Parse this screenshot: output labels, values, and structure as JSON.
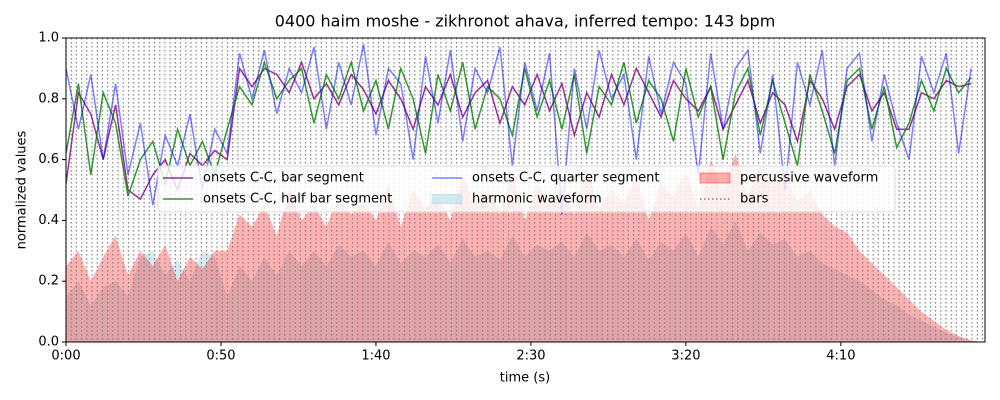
{
  "chart_data": {
    "type": "line",
    "title": "0400 haim moshe - zikhronot ahava, inferred tempo: 143 bpm",
    "xlabel": "time (s)",
    "ylabel": "normalized values",
    "xlim": [
      0,
      296.5
    ],
    "ylim": [
      0,
      1
    ],
    "xticks": [
      {
        "value": 0,
        "label": "0:00"
      },
      {
        "value": 50,
        "label": "0:50"
      },
      {
        "value": 100,
        "label": "1:40"
      },
      {
        "value": 150,
        "label": "2:30"
      },
      {
        "value": 200,
        "label": "3:20"
      },
      {
        "value": 250,
        "label": "4:10"
      }
    ],
    "yticks": [
      {
        "value": 0,
        "label": "0.0"
      },
      {
        "value": 0.2,
        "label": "0.2"
      },
      {
        "value": 0.4,
        "label": "0.4"
      },
      {
        "value": 0.6,
        "label": "0.6"
      },
      {
        "value": 0.8,
        "label": "0.8"
      },
      {
        "value": 1,
        "label": "1.0"
      }
    ],
    "x": [
      0,
      4,
      8,
      12,
      16,
      20,
      24,
      28,
      32,
      36,
      40,
      44,
      48,
      52,
      56,
      60,
      64,
      68,
      72,
      76,
      80,
      84,
      88,
      92,
      96,
      100,
      104,
      108,
      112,
      116,
      120,
      124,
      128,
      132,
      136,
      140,
      144,
      148,
      152,
      156,
      160,
      164,
      168,
      172,
      176,
      180,
      184,
      188,
      192,
      196,
      200,
      204,
      208,
      212,
      216,
      220,
      224,
      228,
      232,
      236,
      240,
      244,
      248,
      252,
      256,
      260,
      264,
      268,
      272,
      276,
      280,
      284,
      288,
      292,
      296
    ],
    "series": [
      {
        "name": "onsets C-C, bar segment",
        "kind": "line",
        "color": "#800080",
        "values": [
          0.52,
          0.82,
          0.75,
          0.6,
          0.78,
          0.5,
          0.47,
          0.55,
          0.6,
          0.5,
          0.62,
          0.58,
          0.63,
          0.6,
          0.9,
          0.84,
          0.9,
          0.88,
          0.82,
          0.92,
          0.8,
          0.85,
          0.78,
          0.88,
          0.83,
          0.75,
          0.86,
          0.8,
          0.7,
          0.84,
          0.78,
          0.88,
          0.74,
          0.82,
          0.86,
          0.72,
          0.84,
          0.78,
          0.88,
          0.76,
          0.85,
          0.68,
          0.82,
          0.74,
          0.88,
          0.78,
          0.9,
          0.82,
          0.74,
          0.86,
          0.8,
          0.76,
          0.84,
          0.7,
          0.78,
          0.86,
          0.72,
          0.82,
          0.78,
          0.66,
          0.86,
          0.8,
          0.7,
          0.84,
          0.88,
          0.76,
          0.82,
          0.7,
          0.7,
          0.82,
          0.8,
          0.86,
          0.84,
          0.85,
          null
        ]
      },
      {
        "name": "onsets C-C, half bar segment",
        "kind": "line",
        "color": "#008000",
        "values": [
          0.62,
          0.85,
          0.55,
          0.82,
          0.72,
          0.48,
          0.6,
          0.66,
          0.52,
          0.7,
          0.58,
          0.66,
          0.55,
          0.7,
          0.84,
          0.78,
          0.92,
          0.8,
          0.86,
          0.9,
          0.72,
          0.88,
          0.8,
          0.92,
          0.76,
          0.86,
          0.7,
          0.9,
          0.8,
          0.62,
          0.88,
          0.76,
          0.92,
          0.7,
          0.84,
          0.8,
          0.68,
          0.9,
          0.74,
          0.86,
          0.7,
          0.88,
          0.62,
          0.84,
          0.78,
          0.92,
          0.72,
          0.86,
          0.8,
          0.66,
          0.9,
          0.74,
          0.84,
          0.6,
          0.82,
          0.9,
          0.68,
          0.86,
          0.72,
          0.58,
          0.88,
          0.76,
          0.62,
          0.86,
          0.9,
          0.7,
          0.84,
          0.64,
          0.72,
          0.86,
          0.76,
          0.9,
          0.82,
          0.87,
          null
        ]
      },
      {
        "name": "onsets C-C, quarter segment",
        "kind": "line",
        "color": "#0000ff",
        "values": [
          0.9,
          0.7,
          0.88,
          0.6,
          0.85,
          0.55,
          0.72,
          0.45,
          0.68,
          0.58,
          0.75,
          0.5,
          0.7,
          0.62,
          0.95,
          0.8,
          0.96,
          0.75,
          0.9,
          0.82,
          0.97,
          0.7,
          0.92,
          0.78,
          0.98,
          0.68,
          0.9,
          0.85,
          0.6,
          0.94,
          0.72,
          0.96,
          0.66,
          0.9,
          0.82,
          0.97,
          0.58,
          0.92,
          0.76,
          0.95,
          0.42,
          0.9,
          0.7,
          0.96,
          0.8,
          0.88,
          0.6,
          0.94,
          0.75,
          0.92,
          0.85,
          0.55,
          0.95,
          0.7,
          0.9,
          0.96,
          0.62,
          0.88,
          0.5,
          0.92,
          0.78,
          0.96,
          0.58,
          0.9,
          0.95,
          0.66,
          0.88,
          0.72,
          0.6,
          0.94,
          0.82,
          0.95,
          0.62,
          0.9,
          null
        ]
      },
      {
        "name": "harmonic waveform",
        "kind": "area",
        "color": "#add8e6",
        "values": [
          0.15,
          0.2,
          0.12,
          0.18,
          0.2,
          0.15,
          0.28,
          0.3,
          0.22,
          0.27,
          0.2,
          0.3,
          0.28,
          0.15,
          0.25,
          0.2,
          0.28,
          0.22,
          0.3,
          0.25,
          0.3,
          0.25,
          0.32,
          0.28,
          0.3,
          0.25,
          0.33,
          0.26,
          0.3,
          0.28,
          0.32,
          0.26,
          0.34,
          0.28,
          0.3,
          0.27,
          0.35,
          0.28,
          0.32,
          0.3,
          0.33,
          0.28,
          0.36,
          0.3,
          0.32,
          0.28,
          0.34,
          0.27,
          0.33,
          0.3,
          0.36,
          0.28,
          0.38,
          0.32,
          0.4,
          0.3,
          0.36,
          0.32,
          0.34,
          0.28,
          0.3,
          0.26,
          0.24,
          0.22,
          0.2,
          0.17,
          0.14,
          0.12,
          0.09,
          0.07,
          0.05,
          0.03,
          0.015,
          0.005,
          0
        ]
      },
      {
        "name": "percussive waveform",
        "kind": "area",
        "color": "#ff0000",
        "values": [
          0.25,
          0.3,
          0.2,
          0.28,
          0.35,
          0.22,
          0.3,
          0.25,
          0.32,
          0.2,
          0.28,
          0.24,
          0.3,
          0.3,
          0.42,
          0.38,
          0.45,
          0.35,
          0.5,
          0.4,
          0.45,
          0.38,
          0.48,
          0.42,
          0.46,
          0.4,
          0.52,
          0.38,
          0.5,
          0.44,
          0.48,
          0.4,
          0.55,
          0.45,
          0.5,
          0.42,
          0.56,
          0.4,
          0.52,
          0.46,
          0.5,
          0.42,
          0.58,
          0.44,
          0.5,
          0.46,
          0.54,
          0.4,
          0.52,
          0.48,
          0.56,
          0.44,
          0.6,
          0.5,
          0.62,
          0.48,
          0.58,
          0.52,
          0.55,
          0.46,
          0.5,
          0.42,
          0.38,
          0.36,
          0.3,
          0.26,
          0.22,
          0.18,
          0.14,
          0.1,
          0.07,
          0.04,
          0.02,
          0.005,
          0
        ]
      },
      {
        "name": "bars",
        "kind": "vlines",
        "color": "#808080",
        "x": [
          0,
          1.68,
          3.36,
          5.04,
          6.72,
          8.4,
          10.08,
          11.76,
          13.44,
          15.12,
          16.8,
          18.48,
          20.16,
          21.84,
          23.52,
          25.2,
          26.88,
          28.56,
          30.24,
          31.92,
          33.6,
          35.28,
          36.96,
          38.64,
          40.32,
          42,
          43.68,
          45.36,
          47.04,
          48.72,
          50.4,
          52.08,
          53.76,
          55.44,
          57.12,
          58.8,
          60.48,
          62.16,
          63.84,
          65.52,
          67.2,
          68.88,
          70.56,
          72.24,
          73.92,
          75.6,
          77.28,
          78.96,
          80.64,
          82.32,
          84,
          85.68,
          87.36,
          89.04,
          90.72,
          92.4,
          94.08,
          95.76,
          97.44,
          99.12,
          100.8,
          102.48,
          104.16,
          105.84,
          107.52,
          109.2,
          110.88,
          112.56,
          114.24,
          115.92,
          117.6,
          119.28,
          120.96,
          122.64,
          124.32,
          126,
          127.68,
          129.36,
          131.04,
          132.72,
          134.4,
          136.08,
          137.76,
          139.44,
          141.12,
          142.8,
          144.48,
          146.16,
          147.84,
          149.52,
          151.2,
          152.88,
          154.56,
          156.24,
          157.92,
          159.6,
          161.28,
          162.96,
          164.64,
          166.32,
          168,
          169.68,
          171.36,
          173.04,
          174.72,
          176.4,
          178.08,
          179.76,
          181.44,
          183.12,
          184.8,
          186.48,
          188.16,
          189.84,
          191.52,
          193.2,
          194.88,
          196.56,
          198.24,
          199.92,
          201.6,
          203.28,
          204.96,
          206.64,
          208.32,
          210,
          211.68,
          213.36,
          215.04,
          216.72,
          218.4,
          220.08,
          221.76,
          223.44,
          225.12,
          226.8,
          228.48,
          230.16,
          231.84,
          233.52,
          235.2,
          236.88,
          238.56,
          240.24,
          241.92,
          243.6,
          245.28,
          246.96,
          248.64,
          250.32,
          252,
          253.68,
          255.36,
          257.04,
          258.72,
          260.4,
          262.08,
          263.76,
          265.44,
          267.12,
          268.8,
          270.48,
          272.16,
          273.84,
          275.52,
          277.2,
          278.88,
          280.56,
          282.24,
          283.92,
          285.6,
          287.28,
          288.96,
          290.64,
          292.32,
          294,
          295.68
        ]
      }
    ]
  }
}
